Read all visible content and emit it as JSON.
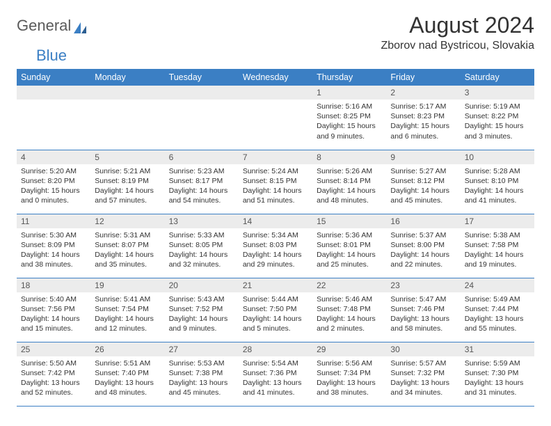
{
  "logo": {
    "general": "General",
    "blue": "Blue"
  },
  "title": "August 2024",
  "location": "Zborov nad Bystricou, Slovakia",
  "colors": {
    "header_bg": "#3b7fc4",
    "header_text": "#ffffff",
    "daynum_bg": "#ececec",
    "border": "#3b7fc4",
    "body_text": "#333333"
  },
  "days_of_week": [
    "Sunday",
    "Monday",
    "Tuesday",
    "Wednesday",
    "Thursday",
    "Friday",
    "Saturday"
  ],
  "weeks": [
    [
      null,
      null,
      null,
      null,
      {
        "n": "1",
        "sunrise": "5:16 AM",
        "sunset": "8:25 PM",
        "daylight": "15 hours and 9 minutes."
      },
      {
        "n": "2",
        "sunrise": "5:17 AM",
        "sunset": "8:23 PM",
        "daylight": "15 hours and 6 minutes."
      },
      {
        "n": "3",
        "sunrise": "5:19 AM",
        "sunset": "8:22 PM",
        "daylight": "15 hours and 3 minutes."
      }
    ],
    [
      {
        "n": "4",
        "sunrise": "5:20 AM",
        "sunset": "8:20 PM",
        "daylight": "15 hours and 0 minutes."
      },
      {
        "n": "5",
        "sunrise": "5:21 AM",
        "sunset": "8:19 PM",
        "daylight": "14 hours and 57 minutes."
      },
      {
        "n": "6",
        "sunrise": "5:23 AM",
        "sunset": "8:17 PM",
        "daylight": "14 hours and 54 minutes."
      },
      {
        "n": "7",
        "sunrise": "5:24 AM",
        "sunset": "8:15 PM",
        "daylight": "14 hours and 51 minutes."
      },
      {
        "n": "8",
        "sunrise": "5:26 AM",
        "sunset": "8:14 PM",
        "daylight": "14 hours and 48 minutes."
      },
      {
        "n": "9",
        "sunrise": "5:27 AM",
        "sunset": "8:12 PM",
        "daylight": "14 hours and 45 minutes."
      },
      {
        "n": "10",
        "sunrise": "5:28 AM",
        "sunset": "8:10 PM",
        "daylight": "14 hours and 41 minutes."
      }
    ],
    [
      {
        "n": "11",
        "sunrise": "5:30 AM",
        "sunset": "8:09 PM",
        "daylight": "14 hours and 38 minutes."
      },
      {
        "n": "12",
        "sunrise": "5:31 AM",
        "sunset": "8:07 PM",
        "daylight": "14 hours and 35 minutes."
      },
      {
        "n": "13",
        "sunrise": "5:33 AM",
        "sunset": "8:05 PM",
        "daylight": "14 hours and 32 minutes."
      },
      {
        "n": "14",
        "sunrise": "5:34 AM",
        "sunset": "8:03 PM",
        "daylight": "14 hours and 29 minutes."
      },
      {
        "n": "15",
        "sunrise": "5:36 AM",
        "sunset": "8:01 PM",
        "daylight": "14 hours and 25 minutes."
      },
      {
        "n": "16",
        "sunrise": "5:37 AM",
        "sunset": "8:00 PM",
        "daylight": "14 hours and 22 minutes."
      },
      {
        "n": "17",
        "sunrise": "5:38 AM",
        "sunset": "7:58 PM",
        "daylight": "14 hours and 19 minutes."
      }
    ],
    [
      {
        "n": "18",
        "sunrise": "5:40 AM",
        "sunset": "7:56 PM",
        "daylight": "14 hours and 15 minutes."
      },
      {
        "n": "19",
        "sunrise": "5:41 AM",
        "sunset": "7:54 PM",
        "daylight": "14 hours and 12 minutes."
      },
      {
        "n": "20",
        "sunrise": "5:43 AM",
        "sunset": "7:52 PM",
        "daylight": "14 hours and 9 minutes."
      },
      {
        "n": "21",
        "sunrise": "5:44 AM",
        "sunset": "7:50 PM",
        "daylight": "14 hours and 5 minutes."
      },
      {
        "n": "22",
        "sunrise": "5:46 AM",
        "sunset": "7:48 PM",
        "daylight": "14 hours and 2 minutes."
      },
      {
        "n": "23",
        "sunrise": "5:47 AM",
        "sunset": "7:46 PM",
        "daylight": "13 hours and 58 minutes."
      },
      {
        "n": "24",
        "sunrise": "5:49 AM",
        "sunset": "7:44 PM",
        "daylight": "13 hours and 55 minutes."
      }
    ],
    [
      {
        "n": "25",
        "sunrise": "5:50 AM",
        "sunset": "7:42 PM",
        "daylight": "13 hours and 52 minutes."
      },
      {
        "n": "26",
        "sunrise": "5:51 AM",
        "sunset": "7:40 PM",
        "daylight": "13 hours and 48 minutes."
      },
      {
        "n": "27",
        "sunrise": "5:53 AM",
        "sunset": "7:38 PM",
        "daylight": "13 hours and 45 minutes."
      },
      {
        "n": "28",
        "sunrise": "5:54 AM",
        "sunset": "7:36 PM",
        "daylight": "13 hours and 41 minutes."
      },
      {
        "n": "29",
        "sunrise": "5:56 AM",
        "sunset": "7:34 PM",
        "daylight": "13 hours and 38 minutes."
      },
      {
        "n": "30",
        "sunrise": "5:57 AM",
        "sunset": "7:32 PM",
        "daylight": "13 hours and 34 minutes."
      },
      {
        "n": "31",
        "sunrise": "5:59 AM",
        "sunset": "7:30 PM",
        "daylight": "13 hours and 31 minutes."
      }
    ]
  ],
  "labels": {
    "sunrise": "Sunrise: ",
    "sunset": "Sunset: ",
    "daylight": "Daylight: "
  }
}
